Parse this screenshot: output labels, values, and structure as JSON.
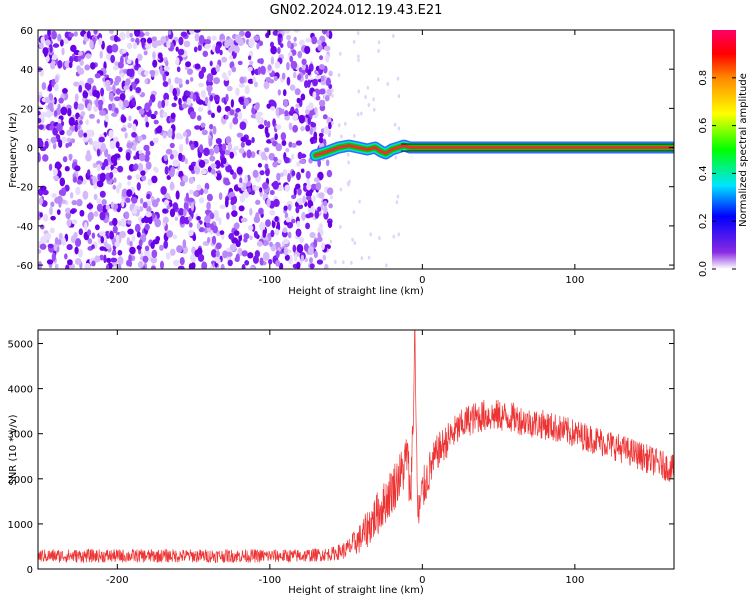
{
  "title": "GN02.2024.012.19.43.E21",
  "chart_data": [
    {
      "type": "heatmap",
      "xlabel": "Height of straight line (km)",
      "ylabel": "Frequency (Hz)",
      "xlim": [
        -252,
        165
      ],
      "ylim": [
        -62,
        60
      ],
      "xticks": [
        -200,
        -100,
        0,
        100
      ],
      "xtick_labels": [
        "-200",
        "-100",
        "0",
        "100"
      ],
      "yticks": [
        -60,
        -40,
        -20,
        0,
        20,
        40,
        60
      ],
      "ytick_labels": [
        "-60",
        "-40",
        "-20",
        "0",
        "20",
        "40",
        "60"
      ],
      "grid": false,
      "noise_region": {
        "x": [
          -252,
          -60
        ],
        "y": [
          -62,
          60
        ]
      },
      "signal_trace": {
        "x": [
          -70,
          -62,
          -55,
          -48,
          -42,
          -36,
          -31,
          -27,
          -24,
          -20,
          -16,
          -12,
          -8,
          -4,
          0,
          40,
          80,
          120,
          165
        ],
        "y": [
          -4,
          -2,
          0,
          1,
          0,
          -1,
          0,
          -2,
          -3,
          -1,
          0,
          1,
          0,
          0,
          0,
          0,
          0,
          0,
          0
        ]
      },
      "colorbar": {
        "label": "Normalized spectral amplitude",
        "range": [
          0,
          1
        ],
        "ticks": [
          0.0,
          0.2,
          0.4,
          0.6,
          0.8
        ],
        "tick_labels": [
          "0.0",
          "0.2",
          "0.4",
          "0.6",
          "0.8"
        ]
      }
    },
    {
      "type": "line",
      "xlabel": "Height of straight line (km)",
      "ylabel": "SNR (10 * v/v)",
      "xlim": [
        -252,
        165
      ],
      "ylim": [
        0,
        5300
      ],
      "xticks": [
        -200,
        -100,
        0,
        100
      ],
      "xtick_labels": [
        "-200",
        "-100",
        "0",
        "100"
      ],
      "yticks": [
        0,
        1000,
        2000,
        3000,
        4000,
        5000
      ],
      "ytick_labels": [
        "0",
        "1000",
        "2000",
        "3000",
        "4000",
        "5000"
      ],
      "grid": false,
      "series": [
        {
          "color": "#ee3333",
          "x": [
            -252,
            -220,
            -190,
            -160,
            -130,
            -100,
            -80,
            -60,
            -50,
            -40,
            -35,
            -30,
            -25,
            -20,
            -15,
            -12,
            -10,
            -8,
            -6,
            -5,
            -3,
            0,
            5,
            10,
            20,
            30,
            40,
            50,
            60,
            70,
            80,
            100,
            120,
            140,
            165
          ],
          "y": [
            290,
            290,
            290,
            290,
            290,
            290,
            290,
            330,
            420,
            700,
            950,
            1200,
            1450,
            1750,
            2050,
            2250,
            2600,
            1600,
            3200,
            5300,
            1100,
            1700,
            2200,
            2600,
            3000,
            3300,
            3400,
            3400,
            3350,
            3250,
            3200,
            3000,
            2800,
            2550,
            2200
          ],
          "noise": [
            150,
            150,
            150,
            150,
            150,
            150,
            150,
            150,
            200,
            350,
            450,
            500,
            500,
            550,
            550,
            550,
            600,
            600,
            600,
            0,
            600,
            500,
            450,
            400,
            380,
            360,
            360,
            360,
            340,
            330,
            330,
            320,
            320,
            320,
            320
          ]
        }
      ]
    }
  ]
}
